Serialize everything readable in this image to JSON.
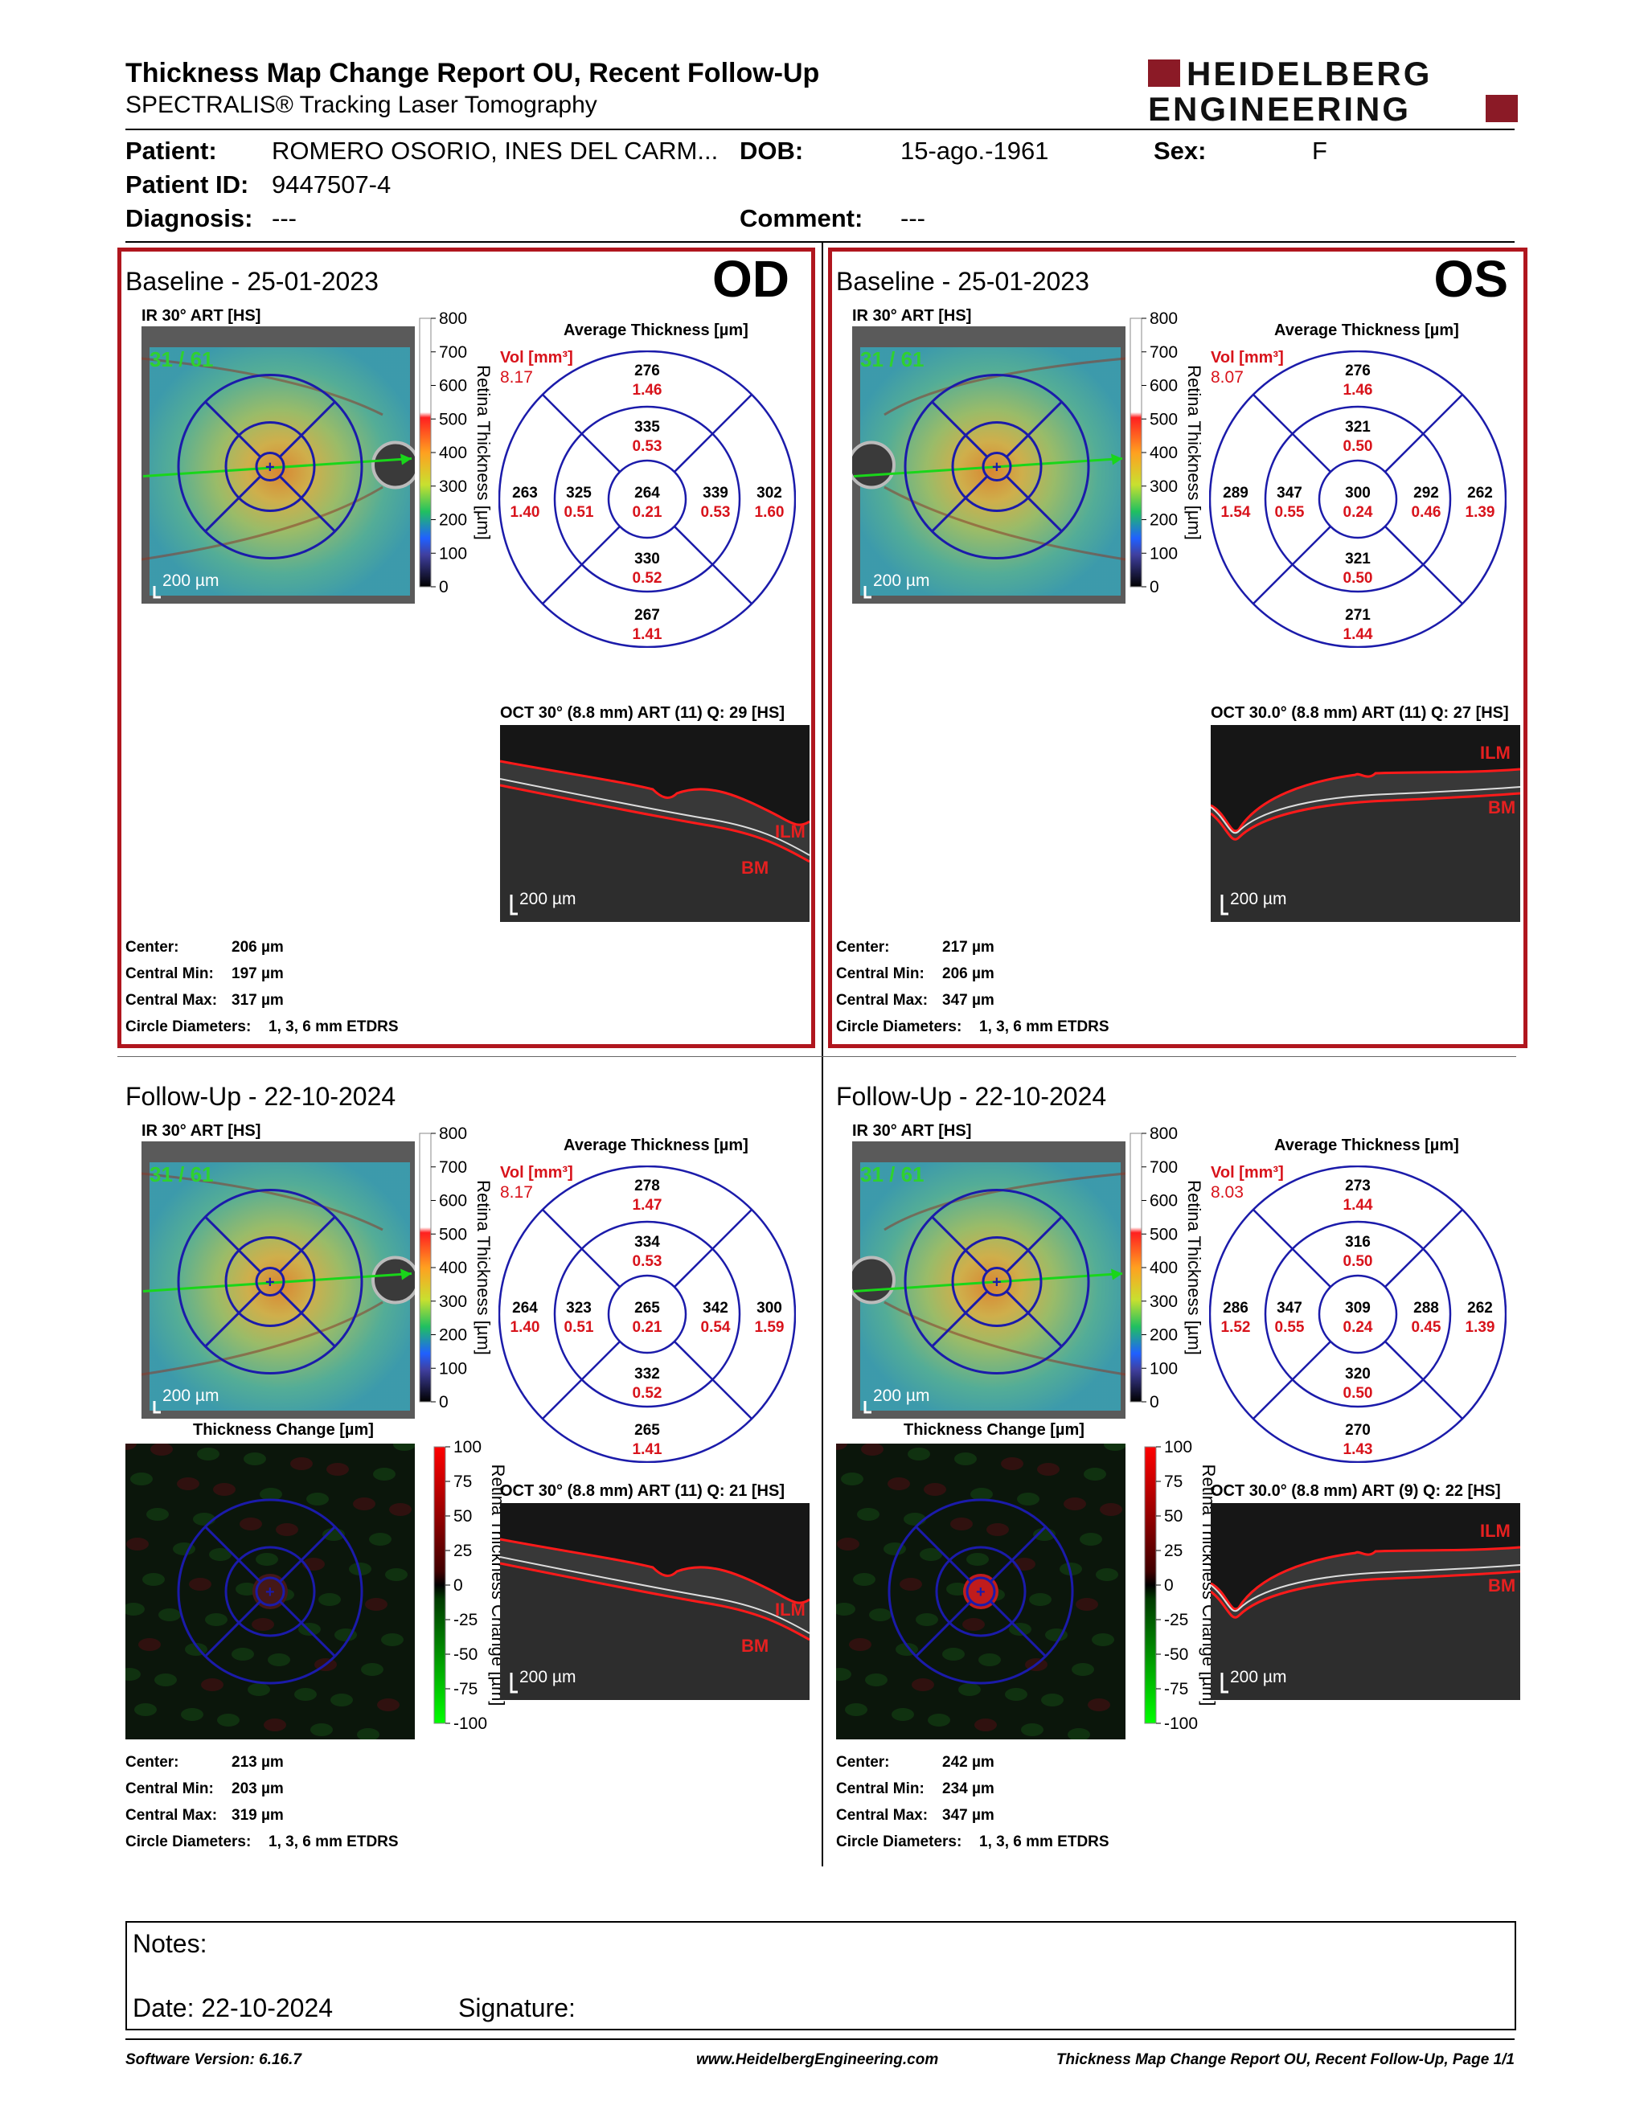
{
  "header": {
    "title": "Thickness Map Change Report OU, Recent Follow-Up",
    "subtitle": "SPECTRALIS® Tracking Laser Tomography",
    "logo_line1": "HEIDELBERG",
    "logo_line2": "ENGINEERING"
  },
  "patient": {
    "patient_label": "Patient:",
    "patient_value": "ROMERO OSORIO, INES DEL CARM...",
    "dob_label": "DOB:",
    "dob_value": "15-ago.-1961",
    "sex_label": "Sex:",
    "sex_value": "F",
    "id_label": "Patient ID:",
    "id_value": "9447507-4",
    "diagnosis_label": "Diagnosis:",
    "diagnosis_value": "---",
    "comment_label": "Comment:",
    "comment_value": "---"
  },
  "labels": {
    "ir": "IR 30° ART [HS]",
    "avg": "Average Thickness [µm]",
    "vol": "Vol [mm³]",
    "scale200": "200 µm",
    "retina_axis": "Retina Thickness [µm]",
    "change_axis": "Retina Thickness Change [µm]",
    "thickness_change": "Thickness Change [µm]",
    "ilm": "ILM",
    "bm": "BM",
    "center": "Center:",
    "cmin": "Central Min:",
    "cmax": "Central Max:",
    "circ": "Circle Diameters:",
    "fix_label": "31 / 61"
  },
  "scale_ticks": [
    "800",
    "700",
    "600",
    "500",
    "400",
    "300",
    "200",
    "100",
    "0"
  ],
  "change_ticks": [
    "100",
    "75",
    "50",
    "25",
    "0",
    "-25",
    "-50",
    "-75",
    "-100"
  ],
  "panels": {
    "od_base": {
      "title": "Baseline - 25-01-2023",
      "eye": "OD",
      "vol": "8.17",
      "oct": "OCT 30° (8.8 mm) ART (11) Q: 29 [HS]",
      "center": "206 µm",
      "cmin": "197 µm",
      "cmax": "317 µm",
      "circ": "1, 3, 6 mm ETDRS",
      "rings": {
        "c": [
          "264",
          "0.21"
        ],
        "it": [
          "335",
          "0.53"
        ],
        "ib": [
          "330",
          "0.52"
        ],
        "il": [
          "325",
          "0.51"
        ],
        "ir": [
          "339",
          "0.53"
        ],
        "ot": [
          "276",
          "1.46"
        ],
        "ob": [
          "267",
          "1.41"
        ],
        "ol": [
          "263",
          "1.40"
        ],
        "or": [
          "302",
          "1.60"
        ]
      }
    },
    "os_base": {
      "title": "Baseline - 25-01-2023",
      "eye": "OS",
      "vol": "8.07",
      "oct": "OCT 30.0° (8.8 mm) ART (11) Q: 27 [HS]",
      "center": "217 µm",
      "cmin": "206 µm",
      "cmax": "347 µm",
      "circ": "1, 3, 6 mm ETDRS",
      "rings": {
        "c": [
          "300",
          "0.24"
        ],
        "it": [
          "321",
          "0.50"
        ],
        "ib": [
          "321",
          "0.50"
        ],
        "il": [
          "347",
          "0.55"
        ],
        "ir": [
          "292",
          "0.46"
        ],
        "ot": [
          "276",
          "1.46"
        ],
        "ob": [
          "271",
          "1.44"
        ],
        "ol": [
          "289",
          "1.54"
        ],
        "or": [
          "262",
          "1.39"
        ]
      }
    },
    "od_fu": {
      "title": "Follow-Up - 22-10-2024",
      "vol": "8.17",
      "oct": "OCT 30° (8.8 mm) ART (11) Q: 21 [HS]",
      "center": "213 µm",
      "cmin": "203 µm",
      "cmax": "319 µm",
      "circ": "1, 3, 6 mm ETDRS",
      "rings": {
        "c": [
          "265",
          "0.21"
        ],
        "it": [
          "334",
          "0.53"
        ],
        "ib": [
          "332",
          "0.52"
        ],
        "il": [
          "323",
          "0.51"
        ],
        "ir": [
          "342",
          "0.54"
        ],
        "ot": [
          "278",
          "1.47"
        ],
        "ob": [
          "265",
          "1.41"
        ],
        "ol": [
          "264",
          "1.40"
        ],
        "or": [
          "300",
          "1.59"
        ]
      }
    },
    "os_fu": {
      "title": "Follow-Up - 22-10-2024",
      "vol": "8.03",
      "oct": "OCT 30.0° (8.8 mm) ART (9) Q: 22 [HS]",
      "center": "242 µm",
      "cmin": "234 µm",
      "cmax": "347 µm",
      "circ": "1, 3, 6 mm ETDRS",
      "rings": {
        "c": [
          "309",
          "0.24"
        ],
        "it": [
          "316",
          "0.50"
        ],
        "ib": [
          "320",
          "0.50"
        ],
        "il": [
          "347",
          "0.55"
        ],
        "ir": [
          "288",
          "0.45"
        ],
        "ot": [
          "273",
          "1.44"
        ],
        "ob": [
          "270",
          "1.43"
        ],
        "ol": [
          "286",
          "1.52"
        ],
        "or": [
          "262",
          "1.39"
        ]
      }
    }
  },
  "notes": {
    "notes_label": "Notes:",
    "date_label": "Date: 22-10-2024",
    "signature_label": "Signature:"
  },
  "footer": {
    "version": "Software Version: 6.16.7",
    "url": "www.HeidelbergEngineering.com",
    "page": "Thickness Map Change Report OU, Recent Follow-Up, Page 1/1"
  },
  "colors": {
    "brand": "#8b1a26",
    "frame": "#b0161e",
    "value_red": "#d8131b",
    "ring": "#1b1baa"
  }
}
